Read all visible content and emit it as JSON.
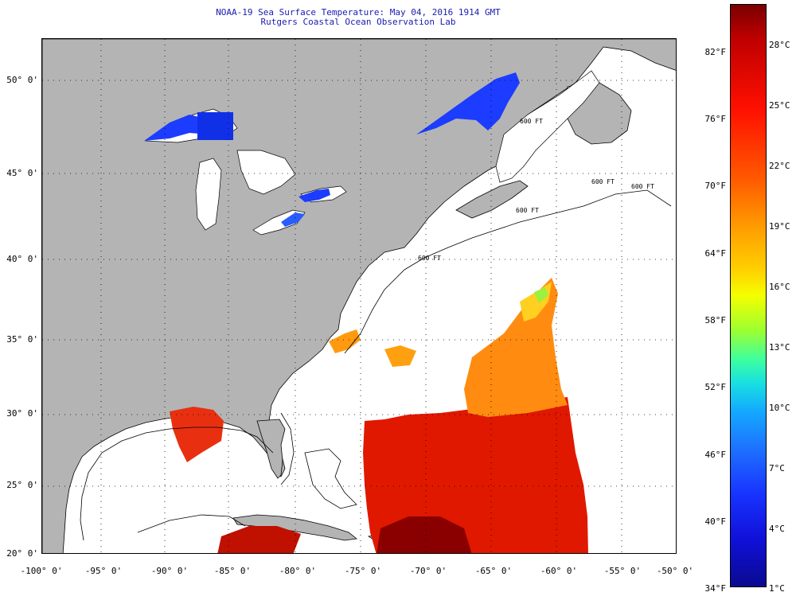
{
  "title": {
    "line1": "NOAA-19 Sea Surface Temperature:  May 04, 2016 1914 GMT",
    "line2": "Rutgers Coastal Ocean Observation Lab"
  },
  "axes": {
    "lat_labels": [
      "50° 0'",
      "45° 0'",
      "40° 0'",
      "35° 0'",
      "30° 0'",
      "25° 0'",
      "20° 0'"
    ],
    "lon_labels": [
      "-100° 0'",
      "-95° 0'",
      "-90° 0'",
      "-85° 0'",
      "-80° 0'",
      "-75° 0'",
      "-70° 0'",
      "-65° 0'",
      "-60° 0'",
      "-55° 0'",
      "-50° 0'"
    ],
    "lat_range": [
      20,
      52.5
    ],
    "lon_range": [
      -100,
      -50
    ]
  },
  "contours": {
    "labels": [
      "600 FT",
      "600 FT",
      "600 FT",
      "600 FT",
      "600 FT"
    ]
  },
  "colorbar": {
    "fahrenheit": [
      "82°F",
      "76°F",
      "70°F",
      "64°F",
      "58°F",
      "52°F",
      "46°F",
      "40°F",
      "34°F"
    ],
    "celsius": [
      "28°C",
      "25°C",
      "22°C",
      "19°C",
      "16°C",
      "13°C",
      "10°C",
      "7°C",
      "4°C",
      "1°C"
    ]
  },
  "colors": {
    "land": "#b4b4b4",
    "ocean_nodata": "#ffffff",
    "title": "#1a1ab0",
    "warm": "#e01800",
    "hot": "#8a0000",
    "mild": "#ff9a10",
    "cold": "#1c3cff"
  }
}
